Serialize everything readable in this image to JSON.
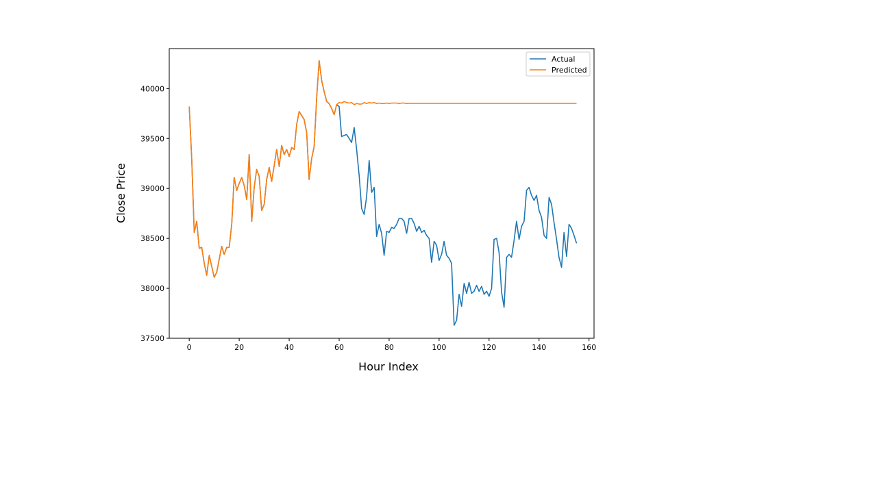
{
  "chart_data": {
    "type": "line",
    "xlabel": "Hour Index",
    "ylabel": "Close Price",
    "xlim": [
      -8,
      162
    ],
    "ylim": [
      37500,
      40400
    ],
    "xticks": [
      0,
      20,
      40,
      60,
      80,
      100,
      120,
      140,
      160
    ],
    "yticks": [
      37500,
      38000,
      38500,
      39000,
      39500,
      40000
    ],
    "grid": false,
    "legend_position": "top-right",
    "series": [
      {
        "name": "Actual",
        "color": "#1f77b4",
        "x": [
          0,
          1,
          2,
          3,
          4,
          5,
          6,
          7,
          8,
          9,
          10,
          11,
          12,
          13,
          14,
          15,
          16,
          17,
          18,
          19,
          20,
          21,
          22,
          23,
          24,
          25,
          26,
          27,
          28,
          29,
          30,
          31,
          32,
          33,
          34,
          35,
          36,
          37,
          38,
          39,
          40,
          41,
          42,
          43,
          44,
          45,
          46,
          47,
          48,
          49,
          50,
          51,
          52,
          53,
          54,
          55,
          56,
          57,
          58,
          59,
          60,
          61,
          62,
          63,
          64,
          65,
          66,
          67,
          68,
          69,
          70,
          71,
          72,
          73,
          74,
          75,
          76,
          77,
          78,
          79,
          80,
          81,
          82,
          83,
          84,
          85,
          86,
          87,
          88,
          89,
          90,
          91,
          92,
          93,
          94,
          95,
          96,
          97,
          98,
          99,
          100,
          101,
          102,
          103,
          104,
          105,
          106,
          107,
          108,
          109,
          110,
          111,
          112,
          113,
          114,
          115,
          116,
          117,
          118,
          119,
          120,
          121,
          122,
          123,
          124,
          125,
          126,
          127,
          128,
          129,
          130,
          131,
          132,
          133,
          134,
          135,
          136,
          137,
          138,
          139,
          140,
          141,
          142,
          143,
          144,
          145,
          146,
          147,
          148,
          149,
          150,
          151,
          152,
          153,
          154,
          155
        ],
        "values": [
          39820,
          39300,
          38560,
          38670,
          38400,
          38410,
          38250,
          38130,
          38330,
          38220,
          38110,
          38160,
          38290,
          38420,
          38340,
          38410,
          38410,
          38640,
          39110,
          38980,
          39050,
          39110,
          39030,
          38890,
          39340,
          38670,
          39010,
          39190,
          39120,
          38780,
          38840,
          39090,
          39210,
          39070,
          39230,
          39390,
          39220,
          39430,
          39340,
          39390,
          39320,
          39410,
          39390,
          39640,
          39770,
          39730,
          39690,
          39560,
          39090,
          39300,
          39420,
          39910,
          40280,
          40080,
          39970,
          39870,
          39850,
          39800,
          39740,
          39840,
          39820,
          39520,
          39530,
          39540,
          39500,
          39460,
          39610,
          39390,
          39130,
          38800,
          38740,
          38920,
          39280,
          38960,
          39010,
          38520,
          38640,
          38550,
          38330,
          38570,
          38560,
          38610,
          38600,
          38640,
          38700,
          38700,
          38670,
          38550,
          38700,
          38700,
          38650,
          38570,
          38620,
          38560,
          38580,
          38530,
          38500,
          38260,
          38470,
          38430,
          38280,
          38340,
          38470,
          38330,
          38300,
          38250,
          37630,
          37680,
          37940,
          37820,
          38050,
          37950,
          38060,
          37950,
          37970,
          38030,
          37970,
          38020,
          37940,
          37970,
          37920,
          38000,
          38490,
          38500,
          38360,
          37960,
          37810,
          38310,
          38340,
          38310,
          38480,
          38670,
          38490,
          38620,
          38670,
          38980,
          39010,
          38930,
          38880,
          38930,
          38780,
          38710,
          38530,
          38500,
          38910,
          38840,
          38660,
          38490,
          38310,
          38210,
          38560,
          38320,
          38640,
          38600,
          38530,
          38450
        ]
      },
      {
        "name": "Predicted",
        "color": "#ff7f0e",
        "x": [
          0,
          1,
          2,
          3,
          4,
          5,
          6,
          7,
          8,
          9,
          10,
          11,
          12,
          13,
          14,
          15,
          16,
          17,
          18,
          19,
          20,
          21,
          22,
          23,
          24,
          25,
          26,
          27,
          28,
          29,
          30,
          31,
          32,
          33,
          34,
          35,
          36,
          37,
          38,
          39,
          40,
          41,
          42,
          43,
          44,
          45,
          46,
          47,
          48,
          49,
          50,
          51,
          52,
          53,
          54,
          55,
          56,
          57,
          58,
          59,
          60,
          61,
          62,
          63,
          64,
          65,
          66,
          67,
          68,
          69,
          70,
          71,
          72,
          73,
          74,
          75,
          76,
          77,
          78,
          79,
          80,
          81,
          82,
          83,
          84,
          85,
          86,
          87,
          88,
          89,
          90,
          91,
          92,
          93,
          94,
          95,
          96,
          97,
          98,
          99,
          100,
          101,
          102,
          103,
          104,
          105,
          106,
          107,
          108,
          109,
          110,
          111,
          112,
          113,
          114,
          115,
          116,
          117,
          118,
          119,
          120,
          121,
          122,
          123,
          124,
          125,
          126,
          127,
          128,
          129,
          130,
          131,
          132,
          133,
          134,
          135,
          136,
          137,
          138,
          139,
          140,
          141,
          142,
          143,
          144,
          145,
          146,
          147,
          148,
          149,
          150,
          151,
          152,
          153,
          154,
          155
        ],
        "values": [
          39820,
          39300,
          38560,
          38670,
          38400,
          38410,
          38250,
          38130,
          38330,
          38220,
          38110,
          38160,
          38290,
          38420,
          38340,
          38410,
          38410,
          38640,
          39110,
          38980,
          39050,
          39110,
          39030,
          38890,
          39340,
          38670,
          39010,
          39190,
          39120,
          38780,
          38840,
          39090,
          39210,
          39070,
          39230,
          39390,
          39220,
          39430,
          39340,
          39390,
          39320,
          39410,
          39390,
          39640,
          39770,
          39730,
          39690,
          39560,
          39090,
          39300,
          39420,
          39910,
          40280,
          40080,
          39970,
          39870,
          39850,
          39800,
          39740,
          39840,
          39860,
          39855,
          39870,
          39860,
          39855,
          39860,
          39840,
          39850,
          39845,
          39845,
          39860,
          39850,
          39860,
          39855,
          39860,
          39850,
          39855,
          39850,
          39850,
          39855,
          39850,
          39855,
          39855,
          39855,
          39850,
          39855,
          39855,
          39850,
          39852,
          39852,
          39852,
          39852,
          39852,
          39852,
          39852,
          39852,
          39852,
          39852,
          39852,
          39852,
          39852,
          39852,
          39852,
          39852,
          39852,
          39852,
          39852,
          39852,
          39852,
          39852,
          39852,
          39852,
          39852,
          39852,
          39852,
          39852,
          39852,
          39852,
          39852,
          39852,
          39852,
          39852,
          39852,
          39852,
          39852,
          39852,
          39852,
          39852,
          39852,
          39852,
          39852,
          39852,
          39852,
          39852,
          39852,
          39852,
          39852,
          39852,
          39852,
          39852,
          39852,
          39852,
          39852,
          39852,
          39852,
          39852,
          39852,
          39852,
          39852,
          39852,
          39852,
          39852,
          39852,
          39852,
          39852,
          39852
        ]
      }
    ]
  }
}
